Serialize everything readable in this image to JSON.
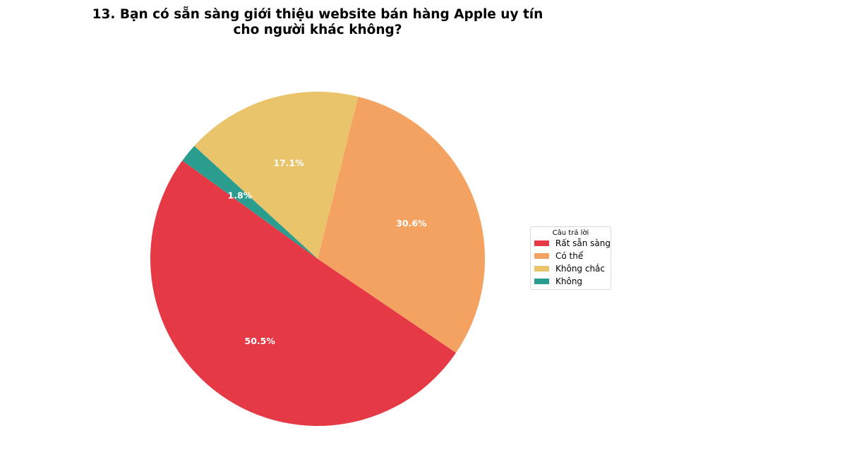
{
  "chart_data": {
    "type": "pie",
    "title": "13. Bạn có sẵn sàng giới thiệu website bán hàng Apple uy tín\ncho người khác không?",
    "legend_title": "Câu trả lời",
    "legend_placement": "right",
    "slices": [
      {
        "label": "Rất sẵn sàng",
        "value": 50.5,
        "display": "50.5%",
        "color": "#e63946"
      },
      {
        "label": "Có thể",
        "value": 30.6,
        "display": "30.6%",
        "color": "#f4a261"
      },
      {
        "label": "Không chắc",
        "value": 17.1,
        "display": "17.1%",
        "color": "#e9c46a"
      },
      {
        "label": "Không",
        "value": 1.8,
        "display": "1.8%",
        "color": "#2a9d8f"
      }
    ]
  }
}
